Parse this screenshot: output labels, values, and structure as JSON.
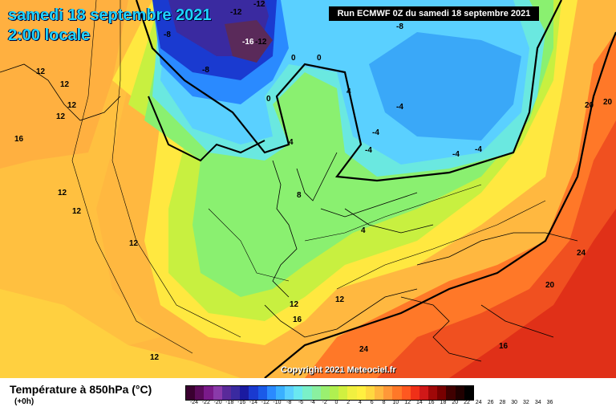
{
  "header": {
    "date": "samedi 18 septembre 2021",
    "time": "2:00 locale",
    "run": "Run ECMWF 0Z du samedi 18 septembre 2021"
  },
  "copyright": "Copyright 2021 Meteociel.fr",
  "footer": {
    "parameter": "Température à 850hPa (°C)",
    "step": "(+0h)"
  },
  "scale": {
    "ticks": [
      "-24",
      "-22",
      "-20",
      "-18",
      "-16",
      "-14",
      "-12",
      "-10",
      "-8",
      "-6",
      "-4",
      "-2",
      "0",
      "2",
      "4",
      "6",
      "8",
      "10",
      "12",
      "14",
      "16",
      "18",
      "20",
      "22",
      "24",
      "26",
      "28",
      "30",
      "32",
      "34",
      "36"
    ],
    "colors": [
      "#3a0030",
      "#5a0a5a",
      "#7a1a8a",
      "#8a3aaa",
      "#5a2a9a",
      "#3a2aa0",
      "#1a1aa0",
      "#1a3ad0",
      "#1a5ae8",
      "#2a8aff",
      "#3ab0ff",
      "#5ad0ff",
      "#6ae8f0",
      "#7af0c8",
      "#8af0a0",
      "#9af070",
      "#b0f050",
      "#d0f040",
      "#f0f040",
      "#fff040",
      "#ffd840",
      "#ffb840",
      "#ff9838",
      "#ff7828",
      "#ff5820",
      "#f03018",
      "#d01818",
      "#a00808",
      "#780000",
      "#400000",
      "#200000",
      "#000000"
    ]
  },
  "map_labels": [
    {
      "text": "-12"
    },
    {
      "text": "-12"
    },
    {
      "text": "-8"
    },
    {
      "text": "-16"
    },
    {
      "text": "-12"
    },
    {
      "text": "-8"
    },
    {
      "text": "-8"
    },
    {
      "text": "0"
    },
    {
      "text": "0"
    },
    {
      "text": "0"
    },
    {
      "text": "4"
    },
    {
      "text": "4"
    },
    {
      "text": "-4"
    },
    {
      "text": "-4"
    },
    {
      "text": "-4"
    },
    {
      "text": "-4"
    },
    {
      "text": "-4"
    },
    {
      "text": "12"
    },
    {
      "text": "12"
    },
    {
      "text": "12"
    },
    {
      "text": "12"
    },
    {
      "text": "16"
    },
    {
      "text": "12"
    },
    {
      "text": "12"
    },
    {
      "text": "12"
    },
    {
      "text": "8"
    },
    {
      "text": "4"
    },
    {
      "text": "12"
    },
    {
      "text": "12"
    },
    {
      "text": "16"
    },
    {
      "text": "12"
    },
    {
      "text": "24"
    },
    {
      "text": "16"
    },
    {
      "text": "20"
    },
    {
      "text": "20"
    },
    {
      "text": "24"
    },
    {
      "text": "20"
    }
  ]
}
